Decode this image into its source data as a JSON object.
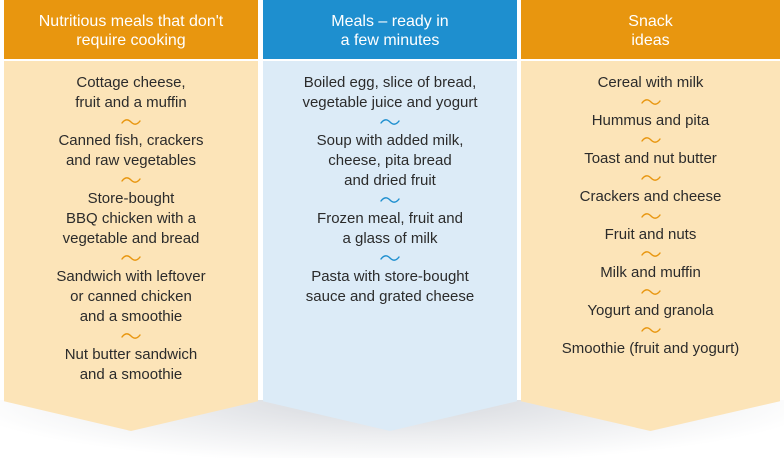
{
  "colors": {
    "orange_header": "#e8960f",
    "orange_body": "#fce4b8",
    "blue_header": "#1e8fcf",
    "blue_body": "#dcebf7",
    "orange_tilde": "#e8960f",
    "blue_tilde": "#1e8fcf"
  },
  "columns": [
    {
      "title": "Nutritious meals that don't\nrequire cooking",
      "items": [
        "Cottage cheese,\nfruit and a muffin",
        "Canned fish, crackers\nand raw vegetables",
        "Store-bought\nBBQ chicken with a\nvegetable and bread",
        "Sandwich with leftover\nor canned chicken\nand a smoothie",
        "Nut butter sandwich\nand a smoothie"
      ]
    },
    {
      "title": "Meals – ready in\na few minutes",
      "items": [
        "Boiled egg, slice of bread,\nvegetable juice and yogurt",
        "Soup with added milk,\ncheese, pita bread\nand dried fruit",
        "Frozen meal, fruit and\na glass of milk",
        "Pasta with store-bought\nsauce and grated cheese"
      ]
    },
    {
      "title": "Snack\nideas",
      "items": [
        "Cereal with milk",
        "Hummus and pita",
        "Toast and nut butter",
        "Crackers and cheese",
        "Fruit and nuts",
        "Milk and muffin",
        "Yogurt and granola",
        "Smoothie (fruit and yogurt)"
      ]
    }
  ]
}
